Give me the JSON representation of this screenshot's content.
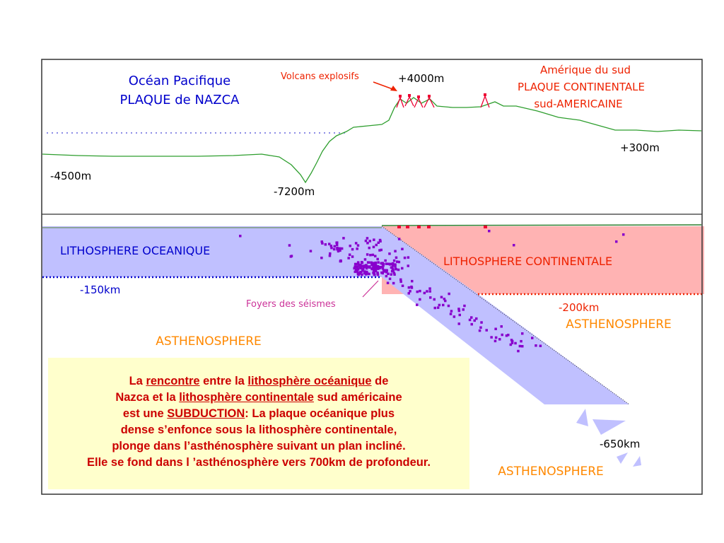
{
  "profile": {
    "ocean_title_1": "Océan Pacifique",
    "ocean_title_2": "PLAQUE de NAZCA",
    "volcans_label": "Volcans explosifs",
    "alt_4000": "+4000m",
    "continent_title_1": "Amérique du sud",
    "continent_title_2": "PLAQUE CONTINENTALE",
    "continent_title_3": "sud-AMERICAINE",
    "alt_300": "+300m",
    "depth_4500": "-4500m",
    "depth_7200": "-7200m"
  },
  "section": {
    "litho_oceanique": "LITHOSPHERE OCEANIQUE",
    "litho_continentale": "LITHOSPHERE CONTINENTALE",
    "depth_150": "-150km",
    "depth_200": "-200km",
    "depth_650": "-650km",
    "seismes_label": "Foyers des séismes",
    "astheno_left": "ASTHENOSPHERE",
    "astheno_right": "ASTHENOSPHERE",
    "astheno_bottom": "ASTHENOSPHERE"
  },
  "info": {
    "l1_a": "La ",
    "l1_b": "rencontre",
    "l1_c": " entre la ",
    "l1_d": "lithosphère océanique",
    "l1_e": " de",
    "l2_a": "Nazca et la ",
    "l2_b": "lithosphère continentale",
    "l2_c": " sud américaine",
    "l3_a": "est une ",
    "l3_b": "SUBDUCTION",
    "l3_c": ": La plaque océanique plus",
    "l4": "dense s’enfonce sous la lithosphère continentale,",
    "l5": "plonge dans l’asthénosphère suivant un plan incliné.",
    "l6": "Elle se fond dans l ’asthénosphère vers 700km de profondeur."
  },
  "colors": {
    "ocean_text": "#0000cc",
    "red_text": "#ee2200",
    "orange_text": "#ff8800",
    "magenta_text": "#cc3399",
    "oceanic_fill": "#c0c0ff",
    "continental_fill": "#ffb3b3",
    "profile_line": "#2e9e2e",
    "quake_dots": "#8800cc",
    "surface_dots": "#ee0033"
  }
}
